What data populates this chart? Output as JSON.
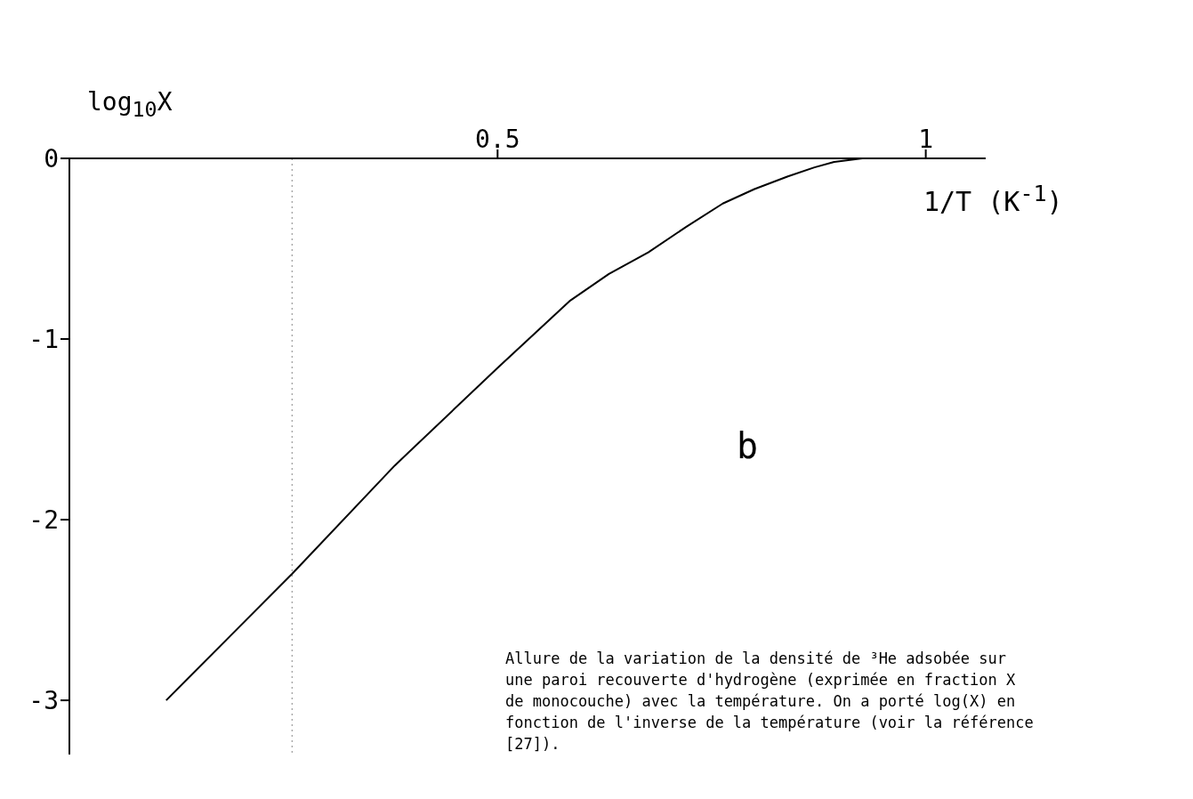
{
  "chart_data": {
    "type": "line",
    "xlabel": "1/T (K$^{-1}$)",
    "ylabel": "log$_{10}$X",
    "x": [
      0.113,
      0.26,
      0.38,
      0.5,
      0.584,
      0.63,
      0.676,
      0.72,
      0.763,
      0.8,
      0.839,
      0.87,
      0.893,
      0.926,
      0.96,
      1.0
    ],
    "values": [
      -3,
      -2.3,
      -1.7,
      -1.16,
      -0.79,
      -0.64,
      -0.52,
      -0.38,
      -0.25,
      -0.17,
      -0.1,
      -0.05,
      -0.02,
      0,
      0,
      0
    ],
    "color": "#000000",
    "marker": "none",
    "line_style": "solid",
    "grid": false,
    "xlim": [
      0,
      1.07
    ],
    "xticks": [
      0.5,
      1
    ],
    "ylim": [
      -3.3,
      0
    ],
    "yticks": [
      -3,
      -2,
      -1,
      0
    ],
    "ref_lines": [
      {
        "axis": "x",
        "value": 0.26,
        "color": "#888888",
        "line_style": "dotted"
      }
    ],
    "annotations": [
      "b",
      "Allure de la variation de la densité de ³He adsobée sur une paroi recouverte d'hydrogène (exprimée en fraction X de monocouche) avec la température. On a porté log(X) en fonction de l'inverse de la température (voir la référence [27])."
    ]
  }
}
